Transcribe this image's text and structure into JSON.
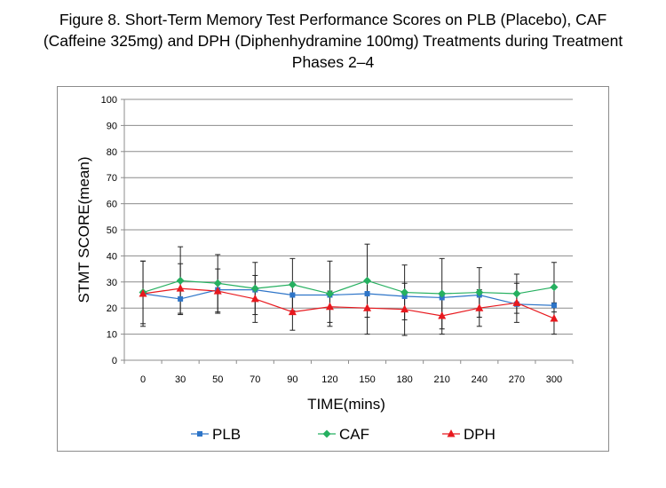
{
  "figure_title_lines": [
    "Figure 8. Short-Term Memory Test Performance Scores on PLB (Placebo), CAF",
    "(Caffeine 325mg) and DPH (Diphenhydramine 100mg) Treatments during Treatment",
    "Phases 2–4"
  ],
  "chart_data": {
    "type": "line",
    "title": "Figure 8. Short-Term Memory Test Performance Scores on PLB (Placebo), CAF (Caffeine 325mg) and DPH (Diphenhydramine 100mg) Treatments during Treatment Phases 2–4",
    "xlabel": "TIME(mins)",
    "ylabel": "STMT SCORE(mean)",
    "categories": [
      "0",
      "30",
      "50",
      "70",
      "90",
      "120",
      "150",
      "180",
      "210",
      "240",
      "270",
      "300"
    ],
    "ylim": [
      0,
      100
    ],
    "yticks": [
      "0",
      "10",
      "20",
      "30",
      "40",
      "50",
      "60",
      "70",
      "80",
      "90",
      "100"
    ],
    "grid": true,
    "legend_position": "bottom",
    "series": [
      {
        "name": "PLB",
        "color": "#2e75c8",
        "marker": "square",
        "values": [
          25.5,
          23.5,
          27,
          27,
          25,
          25,
          25.5,
          24.5,
          24,
          25,
          21.5,
          21
        ],
        "error": [
          12.5,
          0,
          0,
          0,
          0,
          0,
          0,
          0,
          0,
          0,
          0,
          0
        ]
      },
      {
        "name": "CAF",
        "color": "#26b060",
        "marker": "diamond",
        "values": [
          26,
          30.5,
          29.5,
          27.5,
          29,
          25.5,
          30.5,
          26,
          25.5,
          26,
          25.5,
          28
        ],
        "error": [
          12,
          13,
          11,
          10,
          10,
          12.5,
          14,
          10.5,
          13.5,
          9.5,
          7.5,
          9.5
        ]
      },
      {
        "name": "DPH",
        "color": "#e8191e",
        "marker": "triangle",
        "values": [
          25.5,
          27.5,
          26.5,
          23.5,
          18.5,
          20.5,
          20,
          19.5,
          17,
          20,
          22,
          16
        ],
        "error": [
          0,
          9.5,
          8.5,
          9,
          7,
          6,
          10,
          10,
          7,
          7,
          7.5,
          6
        ]
      }
    ]
  }
}
